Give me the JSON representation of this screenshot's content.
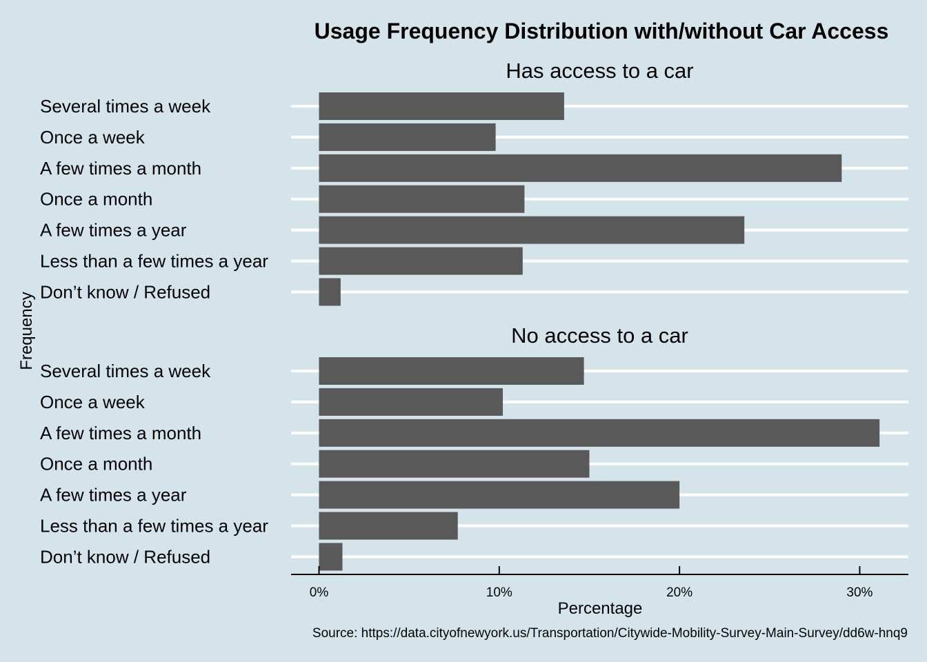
{
  "chart_data": {
    "type": "bar",
    "orientation": "horizontal",
    "title": "Usage Frequency Distribution with/without Car Access",
    "xlabel": "Percentage",
    "ylabel": "Frequency",
    "caption": "Source: https://data.cityofnewyork.us/Transportation/Citywide-Mobility-Survey-Main-Survey/dd6w-hnq9",
    "categories": [
      "Several times a week",
      "Once a week",
      "A few times a month",
      "Once a month",
      "A few times a year",
      "Less than a few times a year",
      "Don’t know / Refused"
    ],
    "panels": [
      {
        "name": "Has access to a car",
        "values": [
          13.6,
          9.8,
          29.0,
          11.4,
          23.6,
          11.3,
          1.2
        ]
      },
      {
        "name": "No access to a car",
        "values": [
          14.7,
          10.2,
          31.1,
          15.0,
          20.0,
          7.7,
          1.3
        ]
      }
    ],
    "x_ticks": [
      {
        "value": 0,
        "label": "0%"
      },
      {
        "value": 10,
        "label": "10%"
      },
      {
        "value": 20,
        "label": "20%"
      },
      {
        "value": 30,
        "label": "30%"
      }
    ],
    "xlim": [
      -1.55,
      32.7
    ],
    "grid": true,
    "legend": "none",
    "colors": {
      "background": "#d5e4eb",
      "bar": "#595959",
      "grid": "#ffffff",
      "text": "#000000"
    }
  }
}
